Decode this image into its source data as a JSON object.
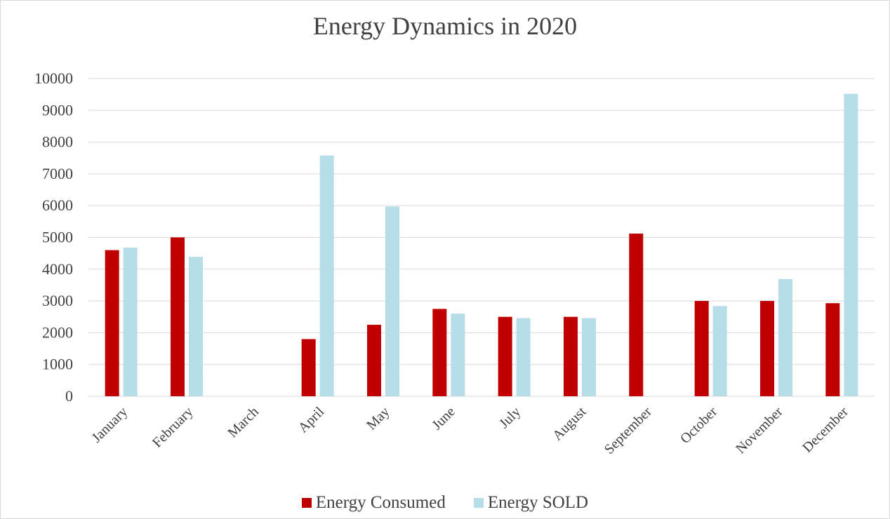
{
  "colors": {
    "consumed": "#c00000",
    "sold": "#b7dde8",
    "grid": "#d9d9d9",
    "text": "#404040"
  },
  "chart_data": {
    "type": "bar",
    "title": "Energy Dynamics in 2020",
    "xlabel": "",
    "ylabel": "",
    "ylim": [
      0,
      10000
    ],
    "yticks": [
      "0",
      "1000",
      "2000",
      "3000",
      "4000",
      "5000",
      "6000",
      "7000",
      "8000",
      "9000",
      "10000"
    ],
    "grid": true,
    "legend_position": "bottom",
    "categories": [
      "January",
      "February",
      "March",
      "April",
      "May",
      "June",
      "July",
      "August",
      "September",
      "October",
      "November",
      "December"
    ],
    "series": [
      {
        "name": "Energy Consumed",
        "values": [
          4600,
          5000,
          0,
          1800,
          2250,
          2750,
          2500,
          2500,
          5120,
          3000,
          3000,
          2930
        ]
      },
      {
        "name": "Energy SOLD",
        "values": [
          4680,
          4390,
          0,
          7580,
          5970,
          2600,
          2460,
          2460,
          0,
          2840,
          3690,
          9520
        ]
      }
    ]
  }
}
